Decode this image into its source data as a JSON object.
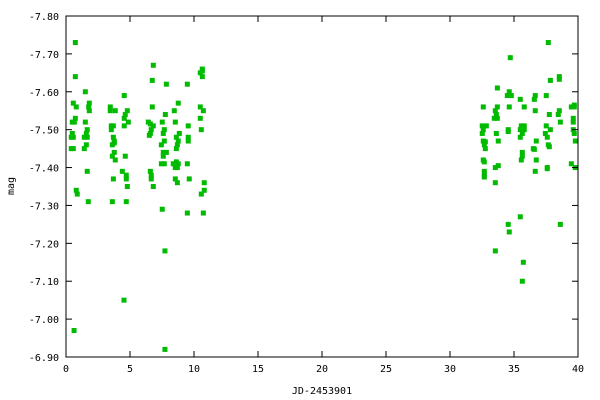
{
  "chart_data": {
    "type": "scatter",
    "title": "",
    "xlabel": "JD-2453901",
    "ylabel": "mag",
    "xlim": [
      0,
      40
    ],
    "ylim": [
      -7.8,
      -6.9
    ],
    "y_inverted": true,
    "grid": false,
    "x_ticks": [
      "0",
      "5",
      "10",
      "15",
      "20",
      "25",
      "30",
      "35",
      "40"
    ],
    "x_tick_values": [
      0,
      5,
      10,
      15,
      20,
      25,
      30,
      35,
      40
    ],
    "y_ticks": [
      "-7.80",
      "-7.70",
      "-7.60",
      "-7.50",
      "-7.40",
      "-7.30",
      "-7.20",
      "-7.10",
      "-7.00",
      "-6.90"
    ],
    "y_tick_values": [
      -7.8,
      -7.7,
      -7.6,
      -7.5,
      -7.4,
      -7.3,
      -7.2,
      -7.1,
      -7.0,
      -6.9
    ],
    "marker_color": "#00bb00",
    "marker": "square",
    "points": [
      [
        0.73,
        -7.73
      ],
      [
        0.73,
        -7.64
      ],
      [
        1.51,
        -7.6
      ],
      [
        0.57,
        -7.57
      ],
      [
        0.8,
        -7.56
      ],
      [
        1.82,
        -7.57
      ],
      [
        1.77,
        -7.56
      ],
      [
        1.82,
        -7.55
      ],
      [
        0.73,
        -7.53
      ],
      [
        0.49,
        -7.52
      ],
      [
        0.65,
        -7.52
      ],
      [
        1.51,
        -7.52
      ],
      [
        1.66,
        -7.5
      ],
      [
        1.59,
        -7.49
      ],
      [
        1.43,
        -7.48
      ],
      [
        1.66,
        -7.48
      ],
      [
        0.49,
        -7.49
      ],
      [
        0.57,
        -7.48
      ],
      [
        0.41,
        -7.48
      ],
      [
        1.59,
        -7.46
      ],
      [
        1.43,
        -7.45
      ],
      [
        0.41,
        -7.45
      ],
      [
        0.57,
        -7.45
      ],
      [
        1.66,
        -7.39
      ],
      [
        0.8,
        -7.34
      ],
      [
        0.88,
        -7.33
      ],
      [
        1.74,
        -7.31
      ],
      [
        0.63,
        -6.97
      ],
      [
        4.55,
        -7.59
      ],
      [
        3.46,
        -7.56
      ],
      [
        3.46,
        -7.55
      ],
      [
        3.85,
        -7.55
      ],
      [
        4.79,
        -7.55
      ],
      [
        4.63,
        -7.54
      ],
      [
        4.55,
        -7.53
      ],
      [
        4.87,
        -7.52
      ],
      [
        4.55,
        -7.51
      ],
      [
        3.7,
        -7.51
      ],
      [
        3.54,
        -7.51
      ],
      [
        3.54,
        -7.5
      ],
      [
        3.7,
        -7.48
      ],
      [
        3.77,
        -7.47
      ],
      [
        3.77,
        -7.465
      ],
      [
        3.62,
        -7.46
      ],
      [
        3.62,
        -7.43
      ],
      [
        3.77,
        -7.44
      ],
      [
        3.85,
        -7.42
      ],
      [
        4.63,
        -7.43
      ],
      [
        4.4,
        -7.39
      ],
      [
        4.71,
        -7.38
      ],
      [
        4.71,
        -7.37
      ],
      [
        3.7,
        -7.37
      ],
      [
        4.79,
        -7.35
      ],
      [
        3.62,
        -7.31
      ],
      [
        4.71,
        -7.31
      ],
      [
        4.53,
        -7.05
      ],
      [
        6.82,
        -7.67
      ],
      [
        6.74,
        -7.63
      ],
      [
        7.84,
        -7.62
      ],
      [
        9.48,
        -7.62
      ],
      [
        8.77,
        -7.57
      ],
      [
        6.74,
        -7.56
      ],
      [
        7.76,
        -7.54
      ],
      [
        8.46,
        -7.55
      ],
      [
        6.43,
        -7.52
      ],
      [
        6.59,
        -7.515
      ],
      [
        6.82,
        -7.51
      ],
      [
        6.66,
        -7.5
      ],
      [
        6.59,
        -7.49
      ],
      [
        6.51,
        -7.485
      ],
      [
        7.52,
        -7.52
      ],
      [
        8.54,
        -7.52
      ],
      [
        7.68,
        -7.5
      ],
      [
        7.6,
        -7.49
      ],
      [
        9.55,
        -7.51
      ],
      [
        8.85,
        -7.49
      ],
      [
        8.62,
        -7.48
      ],
      [
        8.77,
        -7.47
      ],
      [
        8.7,
        -7.46
      ],
      [
        8.62,
        -7.45
      ],
      [
        7.68,
        -7.47
      ],
      [
        7.45,
        -7.46
      ],
      [
        9.55,
        -7.48
      ],
      [
        9.55,
        -7.47
      ],
      [
        7.6,
        -7.44
      ],
      [
        7.84,
        -7.44
      ],
      [
        7.6,
        -7.43
      ],
      [
        7.45,
        -7.41
      ],
      [
        7.68,
        -7.41
      ],
      [
        8.38,
        -7.41
      ],
      [
        8.62,
        -7.415
      ],
      [
        8.77,
        -7.41
      ],
      [
        8.54,
        -7.4
      ],
      [
        8.7,
        -7.4
      ],
      [
        9.48,
        -7.41
      ],
      [
        6.59,
        -7.39
      ],
      [
        6.66,
        -7.38
      ],
      [
        6.66,
        -7.37
      ],
      [
        6.82,
        -7.35
      ],
      [
        8.54,
        -7.37
      ],
      [
        8.7,
        -7.36
      ],
      [
        9.63,
        -7.37
      ],
      [
        7.52,
        -7.29
      ],
      [
        9.48,
        -7.28
      ],
      [
        7.73,
        -7.18
      ],
      [
        7.73,
        -6.92
      ],
      [
        10.65,
        -7.66
      ],
      [
        10.49,
        -7.65
      ],
      [
        10.65,
        -7.64
      ],
      [
        10.65,
        -7.655
      ],
      [
        10.49,
        -7.56
      ],
      [
        10.73,
        -7.55
      ],
      [
        10.49,
        -7.53
      ],
      [
        10.57,
        -7.5
      ],
      [
        10.8,
        -7.36
      ],
      [
        10.8,
        -7.34
      ],
      [
        10.57,
        -7.33
      ],
      [
        10.73,
        -7.28
      ],
      [
        37.68,
        -7.73
      ],
      [
        34.71,
        -7.69
      ],
      [
        37.84,
        -7.63
      ],
      [
        38.54,
        -7.64
      ],
      [
        38.54,
        -7.633
      ],
      [
        33.7,
        -7.61
      ],
      [
        34.63,
        -7.6
      ],
      [
        34.79,
        -7.59
      ],
      [
        34.48,
        -7.59
      ],
      [
        35.49,
        -7.58
      ],
      [
        36.66,
        -7.59
      ],
      [
        36.59,
        -7.58
      ],
      [
        37.52,
        -7.59
      ],
      [
        32.6,
        -7.56
      ],
      [
        33.54,
        -7.55
      ],
      [
        33.7,
        -7.56
      ],
      [
        34.63,
        -7.56
      ],
      [
        35.8,
        -7.56
      ],
      [
        36.66,
        -7.55
      ],
      [
        37.76,
        -7.54
      ],
      [
        38.54,
        -7.55
      ],
      [
        38.46,
        -7.54
      ],
      [
        38.62,
        -7.52
      ],
      [
        39.48,
        -7.56
      ],
      [
        39.71,
        -7.565
      ],
      [
        39.71,
        -7.56
      ],
      [
        39.63,
        -7.53
      ],
      [
        39.63,
        -7.52
      ],
      [
        33.62,
        -7.54
      ],
      [
        33.46,
        -7.53
      ],
      [
        33.7,
        -7.53
      ],
      [
        32.52,
        -7.51
      ],
      [
        32.84,
        -7.51
      ],
      [
        32.52,
        -7.49
      ],
      [
        32.6,
        -7.5
      ],
      [
        33.62,
        -7.49
      ],
      [
        34.55,
        -7.5
      ],
      [
        34.55,
        -7.495
      ],
      [
        35.57,
        -7.51
      ],
      [
        35.49,
        -7.5
      ],
      [
        35.8,
        -7.51
      ],
      [
        35.8,
        -7.5
      ],
      [
        35.65,
        -7.49
      ],
      [
        35.49,
        -7.48
      ],
      [
        37.52,
        -7.51
      ],
      [
        37.84,
        -7.5
      ],
      [
        37.45,
        -7.49
      ],
      [
        37.6,
        -7.48
      ],
      [
        36.74,
        -7.47
      ],
      [
        39.63,
        -7.5
      ],
      [
        39.71,
        -7.49
      ],
      [
        39.79,
        -7.47
      ],
      [
        32.6,
        -7.47
      ],
      [
        32.76,
        -7.468
      ],
      [
        32.68,
        -7.46
      ],
      [
        32.76,
        -7.45
      ],
      [
        33.77,
        -7.47
      ],
      [
        36.51,
        -7.45
      ],
      [
        36.59,
        -7.448
      ],
      [
        37.68,
        -7.46
      ],
      [
        37.76,
        -7.455
      ],
      [
        35.65,
        -7.44
      ],
      [
        35.65,
        -7.43
      ],
      [
        35.57,
        -7.42
      ],
      [
        36.74,
        -7.42
      ],
      [
        32.6,
        -7.42
      ],
      [
        32.68,
        -7.415
      ],
      [
        37.6,
        -7.4
      ],
      [
        37.6,
        -7.397
      ],
      [
        39.48,
        -7.41
      ],
      [
        39.79,
        -7.4
      ],
      [
        33.54,
        -7.4
      ],
      [
        33.77,
        -7.405
      ],
      [
        36.66,
        -7.39
      ],
      [
        32.68,
        -7.39
      ],
      [
        32.68,
        -7.38
      ],
      [
        32.68,
        -7.375
      ],
      [
        33.54,
        -7.36
      ],
      [
        35.49,
        -7.27
      ],
      [
        34.55,
        -7.25
      ],
      [
        34.63,
        -7.23
      ],
      [
        38.62,
        -7.25
      ],
      [
        33.54,
        -7.18
      ],
      [
        35.73,
        -7.15
      ],
      [
        35.65,
        -7.1
      ]
    ]
  }
}
